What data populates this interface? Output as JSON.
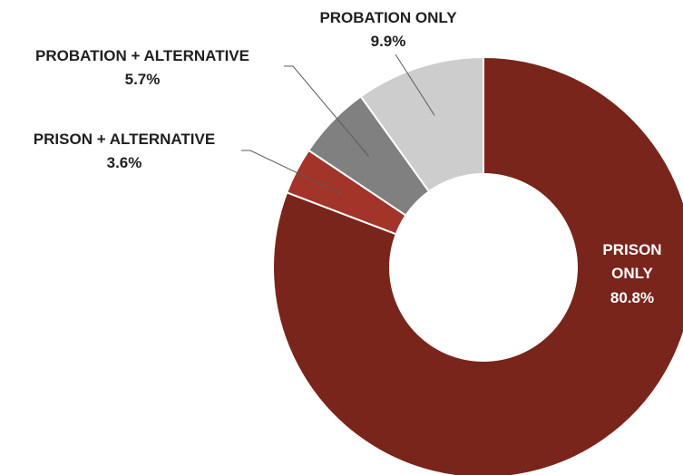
{
  "chart_data": {
    "type": "pie",
    "donut": true,
    "title": "",
    "categories": [
      "PRISON ONLY",
      "PRISON + ALTERNATIVE",
      "PROBATION + ALTERNATIVE",
      "PROBATION ONLY"
    ],
    "values": [
      80.8,
      3.6,
      5.7,
      9.9
    ],
    "unit": "%",
    "colors": [
      "#79251b",
      "#a2342a",
      "#808080",
      "#cdcdcd"
    ],
    "labels": [
      {
        "name": "PRISON ONLY",
        "value": "80.8%",
        "placement": "inside"
      },
      {
        "name": "PRISON + ALTERNATIVE",
        "value": "3.6%",
        "placement": "outside"
      },
      {
        "name": "PROBATION + ALTERNATIVE",
        "value": "5.7%",
        "placement": "outside"
      },
      {
        "name": "PROBATION ONLY",
        "value": "9.9%",
        "placement": "outside"
      }
    ],
    "legend": "none"
  }
}
